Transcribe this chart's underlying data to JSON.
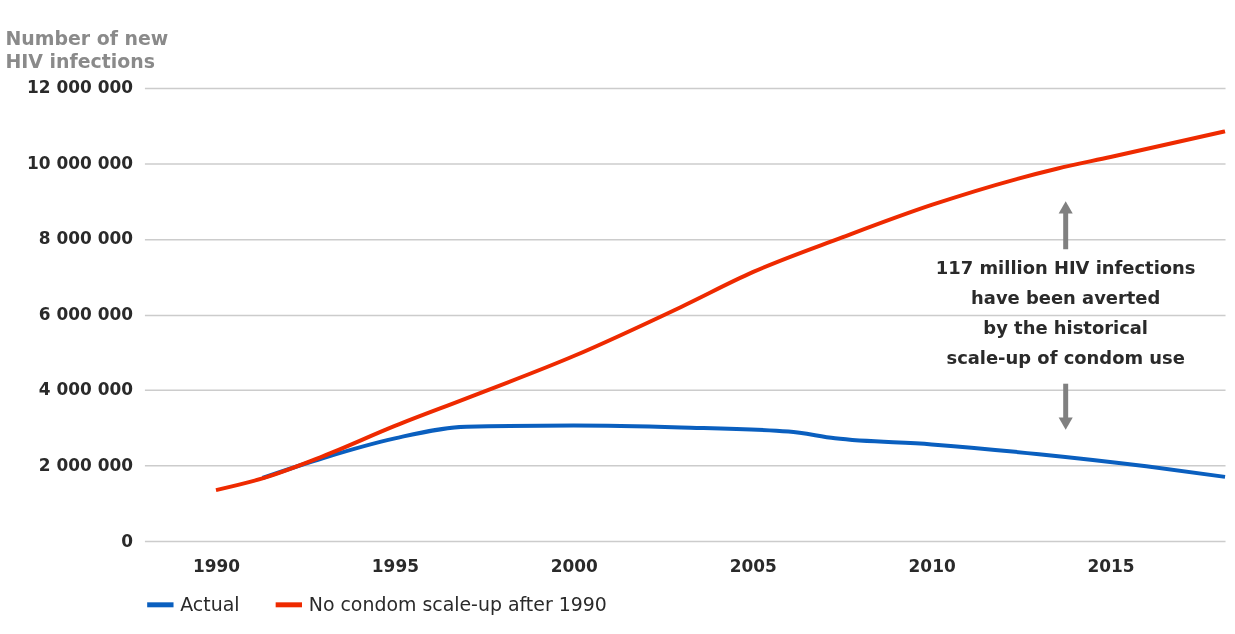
{
  "chart_data": {
    "type": "line",
    "ylabel": "Number of new\nHIV infections",
    "xlim": [
      1988,
      2018.2
    ],
    "xticks": [
      1990,
      1995,
      2000,
      2005,
      2010,
      2015
    ],
    "ylim": [
      0,
      12000000
    ],
    "yticks": [
      0,
      2000000,
      4000000,
      6000000,
      8000000,
      10000000,
      12000000
    ],
    "series": [
      {
        "name": "Actual",
        "color": "#0a5fbf",
        "x": [
          1991.3,
          1993,
          1995,
          1997,
          2000,
          2003,
          2006,
          2007.3,
          2010,
          2013,
          2016,
          2018.2
        ],
        "values": [
          1670000,
          2200000,
          2720000,
          3030000,
          3060000,
          3010000,
          2900000,
          2720000,
          2560000,
          2300000,
          1980000,
          1700000
        ]
      },
      {
        "name": "No condom scale-up after 1990",
        "color": "#ee2a00",
        "x": [
          1990,
          1991.3,
          1993,
          1995,
          1997,
          2000,
          2003,
          2005,
          2007.5,
          2010,
          2013.5,
          2015,
          2018.2
        ],
        "values": [
          1350000,
          1660000,
          2250000,
          3050000,
          3780000,
          4900000,
          6200000,
          7120000,
          8040000,
          8900000,
          9860000,
          10170000,
          10850000
        ]
      }
    ],
    "annotations": [
      "117 million HIV infections\nhave been averted\nby the historical\nscale-up of condom use"
    ],
    "grid": "y",
    "legend": "bottom",
    "line_style": "solid",
    "marker": "none"
  }
}
